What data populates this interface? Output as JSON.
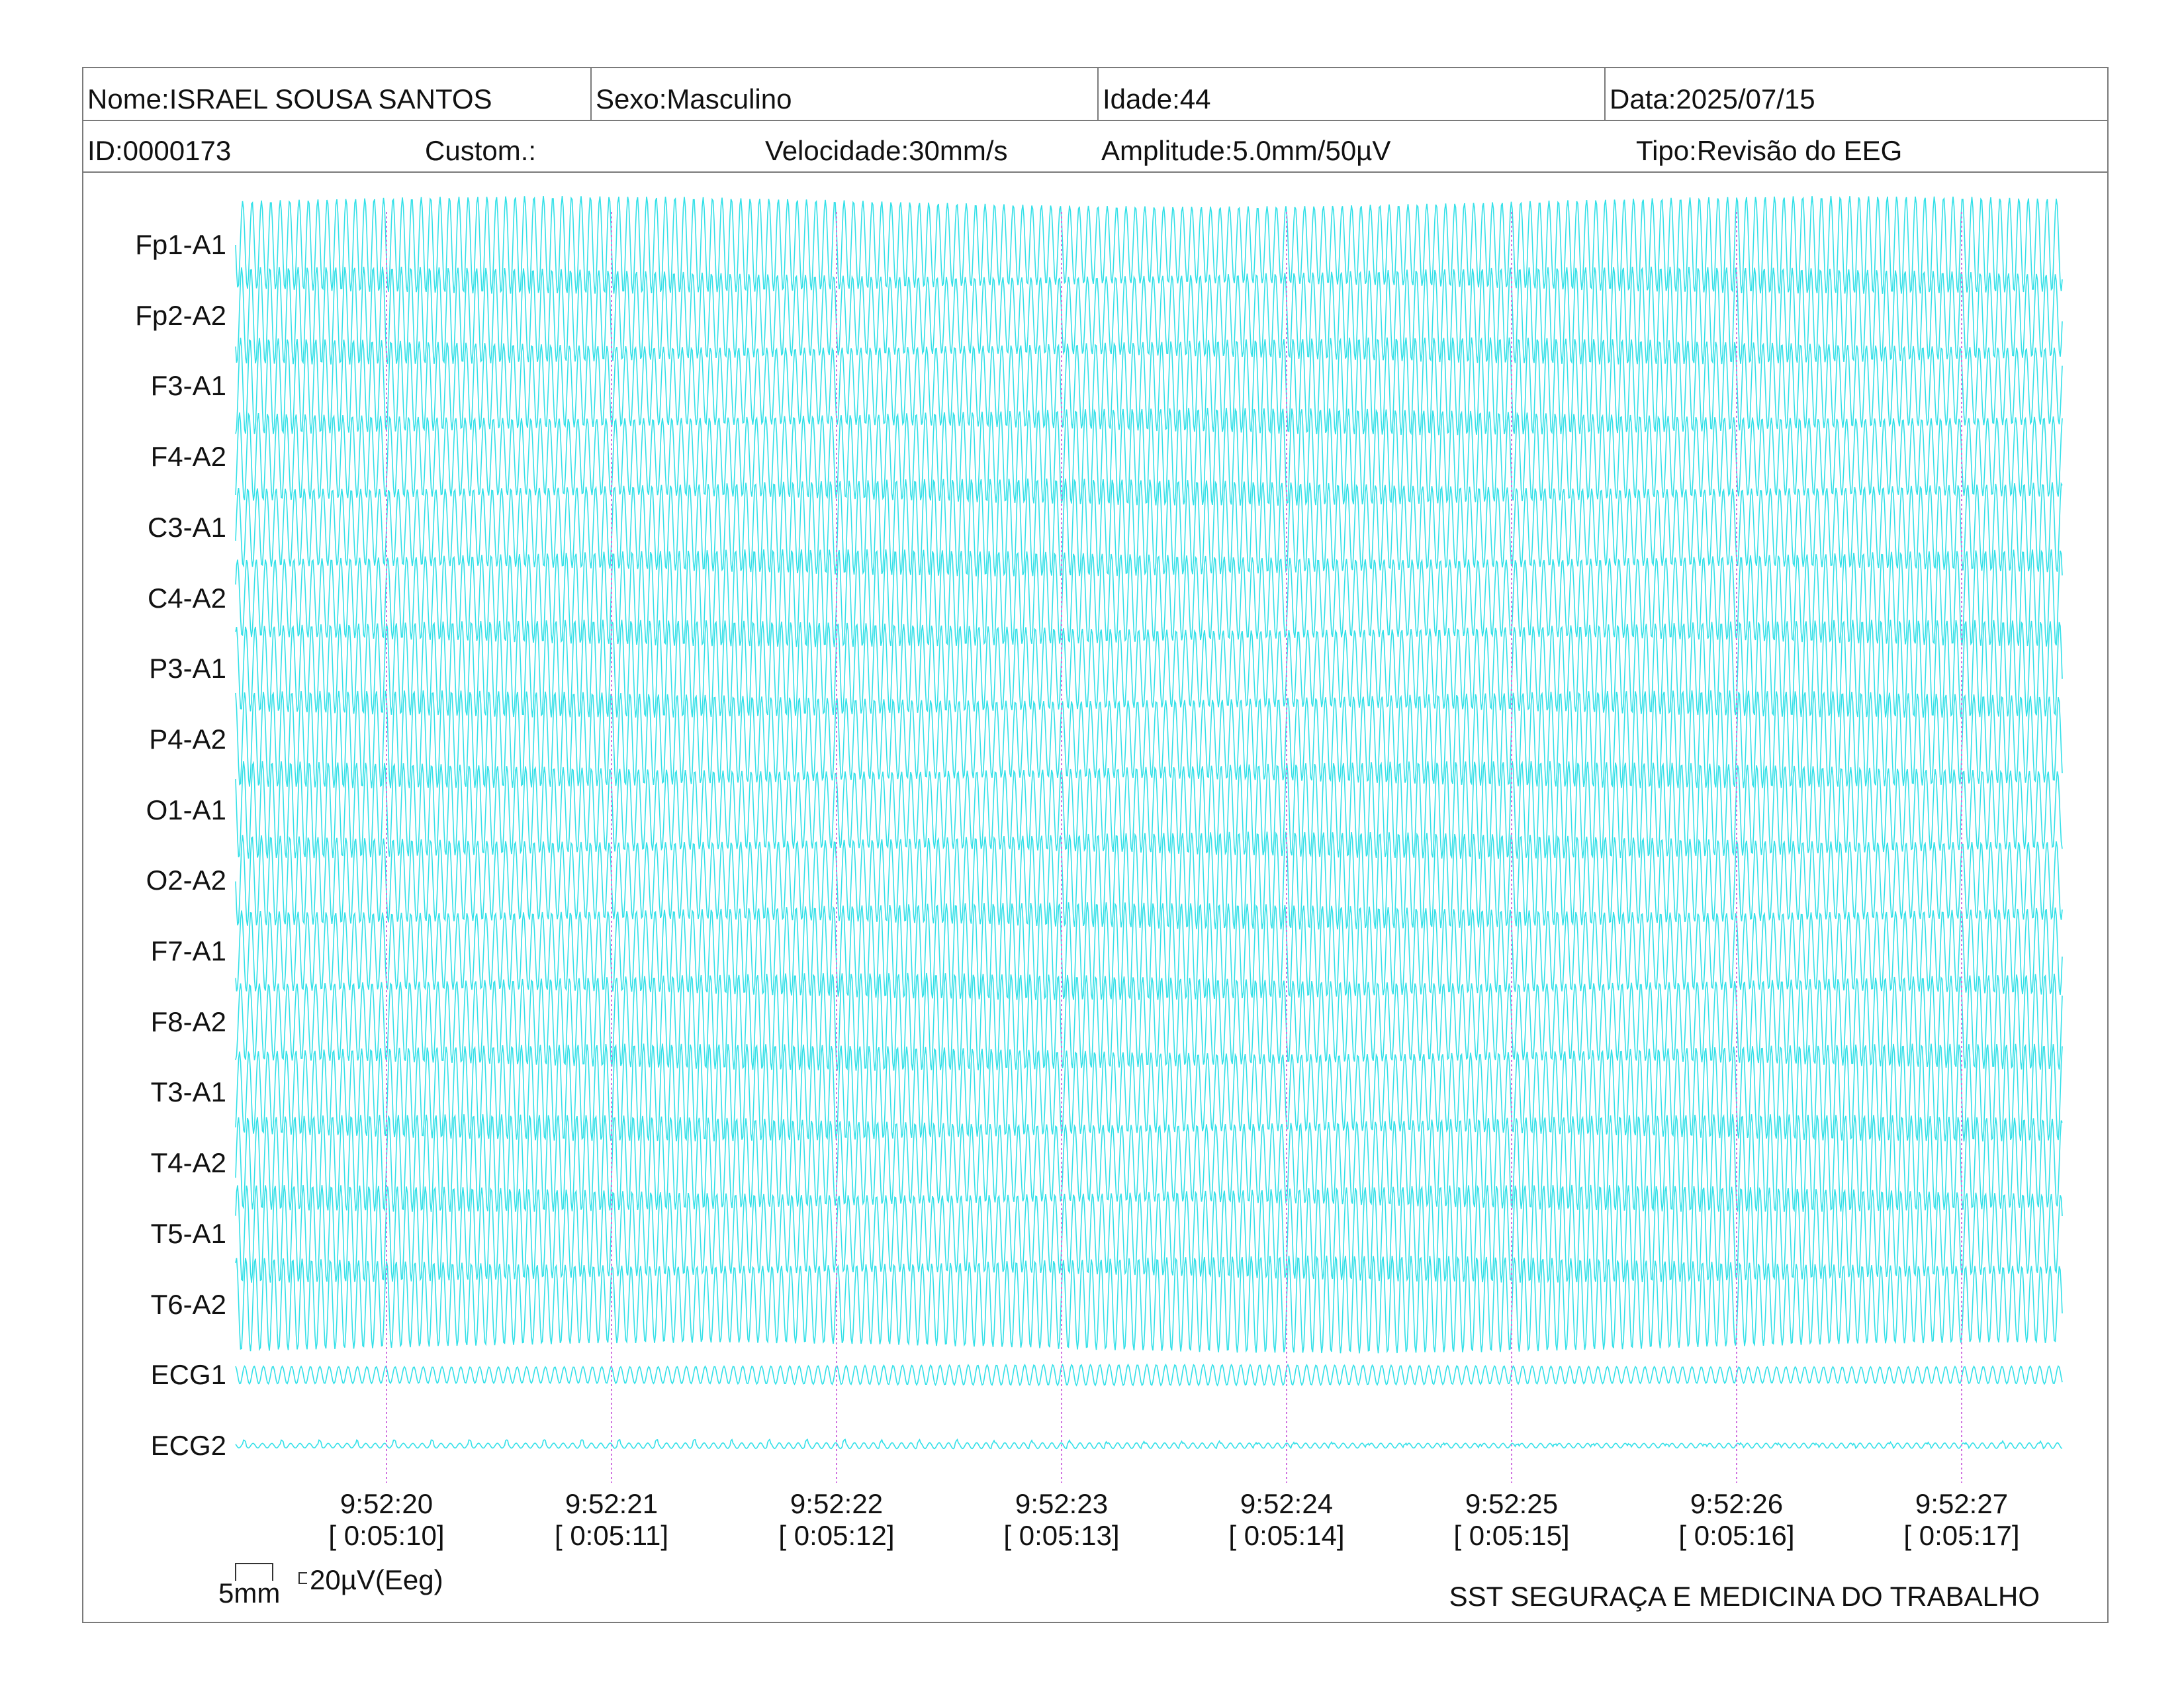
{
  "header": {
    "name": "Nome:ISRAEL SOUSA SANTOS",
    "sex": "Sexo:Masculino",
    "age": "Idade:44",
    "date": "Data:2025/07/15",
    "id": "ID:0000173",
    "custom": "Custom.:",
    "speed": "Velocidade:30mm/s",
    "amplitude": "Amplitude:5.0mm/50µV",
    "type": "Tipo:Revisão do EEG"
  },
  "leads": [
    "Fp1-A1",
    "Fp2-A2",
    "F3-A1",
    "F4-A2",
    "C3-A1",
    "C4-A2",
    "P3-A1",
    "P4-A2",
    "O1-A1",
    "O2-A2",
    "F7-A1",
    "F8-A2",
    "T3-A1",
    "T4-A2",
    "T5-A1",
    "T6-A2",
    "ECG1",
    "ECG2"
  ],
  "time_markers": [
    {
      "clock": "9:52:20",
      "elapsed": "[ 0:05:10]"
    },
    {
      "clock": "9:52:21",
      "elapsed": "[ 0:05:11]"
    },
    {
      "clock": "9:52:22",
      "elapsed": "[ 0:05:12]"
    },
    {
      "clock": "9:52:23",
      "elapsed": "[ 0:05:13]"
    },
    {
      "clock": "9:52:24",
      "elapsed": "[ 0:05:14]"
    },
    {
      "clock": "9:52:25",
      "elapsed": "[ 0:05:15]"
    },
    {
      "clock": "9:52:26",
      "elapsed": "[ 0:05:16]"
    },
    {
      "clock": "9:52:27",
      "elapsed": "[ 0:05:17]"
    }
  ],
  "scale": {
    "time": "5mm",
    "amplitude": "20µV(Eeg)"
  },
  "footer": "SST SEGURAÇA E MEDICINA DO TRABALHO",
  "colors": {
    "trace": "#33e0e8",
    "marker": "#d070e0",
    "border": "#7a7a7a"
  }
}
